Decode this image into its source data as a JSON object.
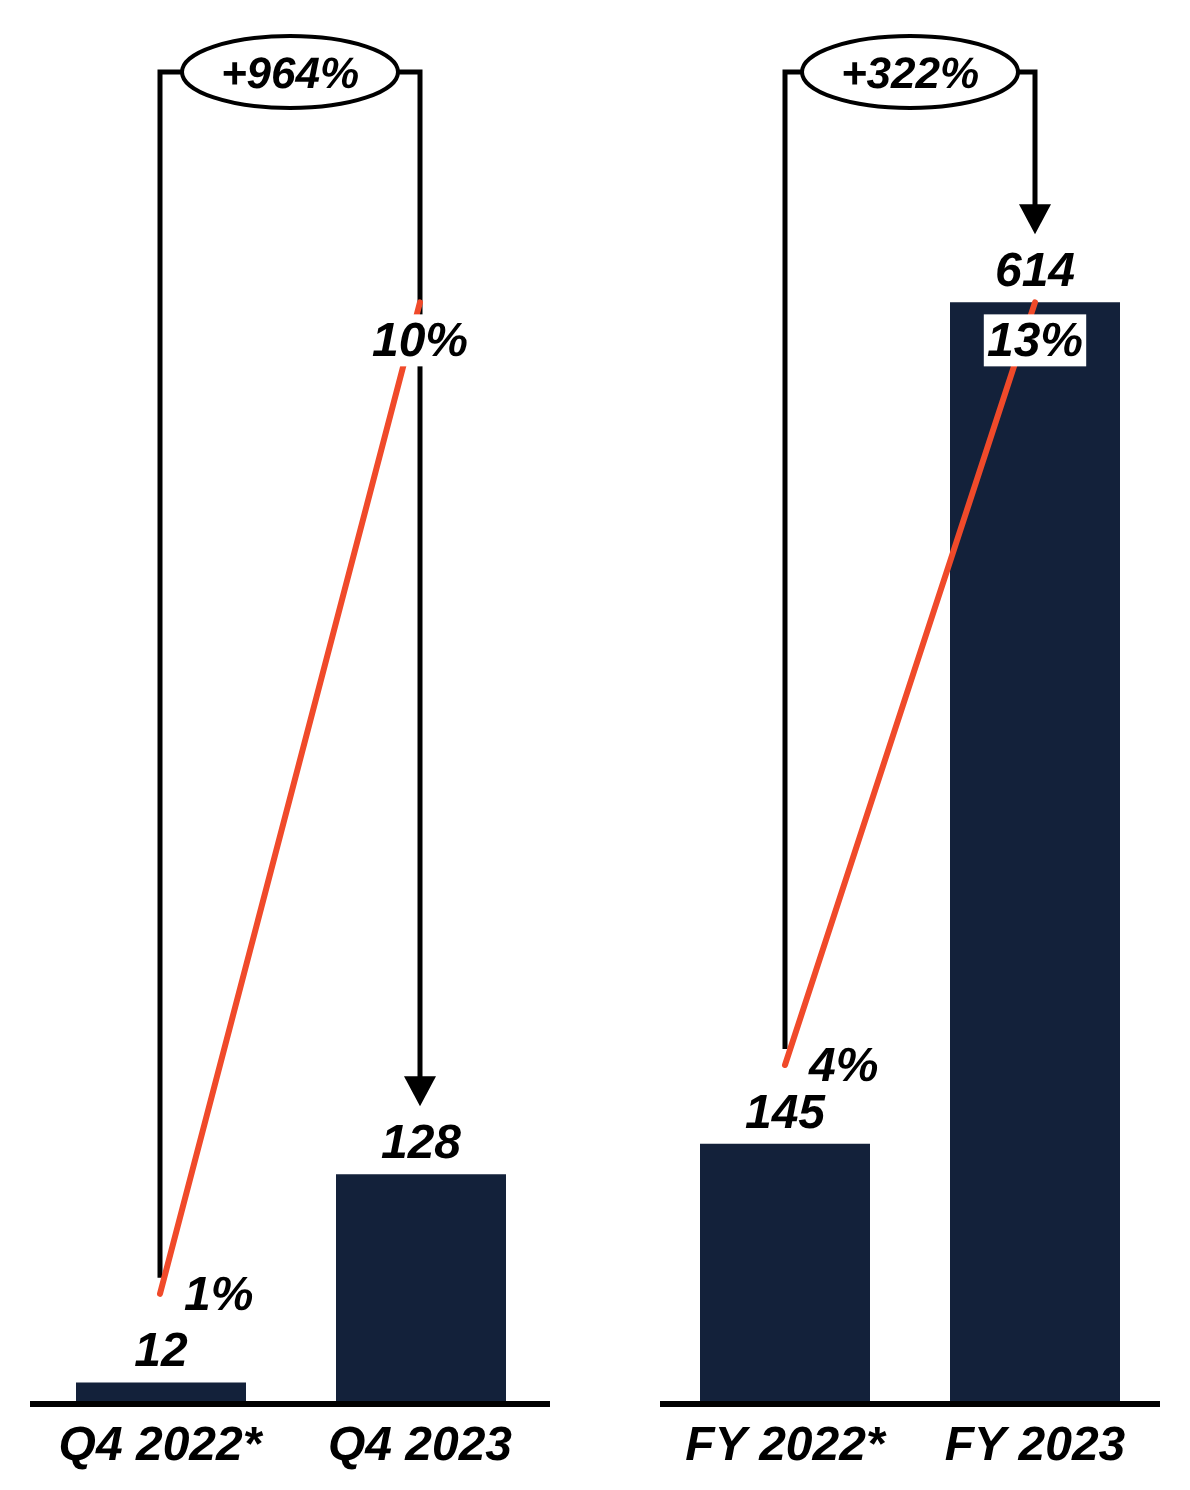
{
  "chart_data": [
    {
      "type": "bar",
      "categories": [
        "Q4 2022*",
        "Q4 2023"
      ],
      "series": [
        {
          "color": "#13213a",
          "values": [
            12,
            128
          ]
        },
        {
          "type": "line",
          "axis": "y2",
          "color": "#f04a2a",
          "values": [
            1,
            10
          ],
          "value_labels": [
            "1%",
            "10%"
          ]
        }
      ],
      "data_labels": true,
      "tick_labels": "x",
      "annotations": [
        "+964%"
      ]
    },
    {
      "type": "bar",
      "categories": [
        "FY 2022*",
        "FY 2023"
      ],
      "series": [
        {
          "color": "#13213a",
          "values": [
            145,
            614
          ]
        },
        {
          "type": "line",
          "axis": "y2",
          "color": "#f04a2a",
          "values": [
            4,
            13
          ],
          "value_labels": [
            "4%",
            "13%"
          ]
        }
      ],
      "data_labels": true,
      "tick_labels": "x",
      "annotations": [
        "+322%"
      ]
    }
  ]
}
